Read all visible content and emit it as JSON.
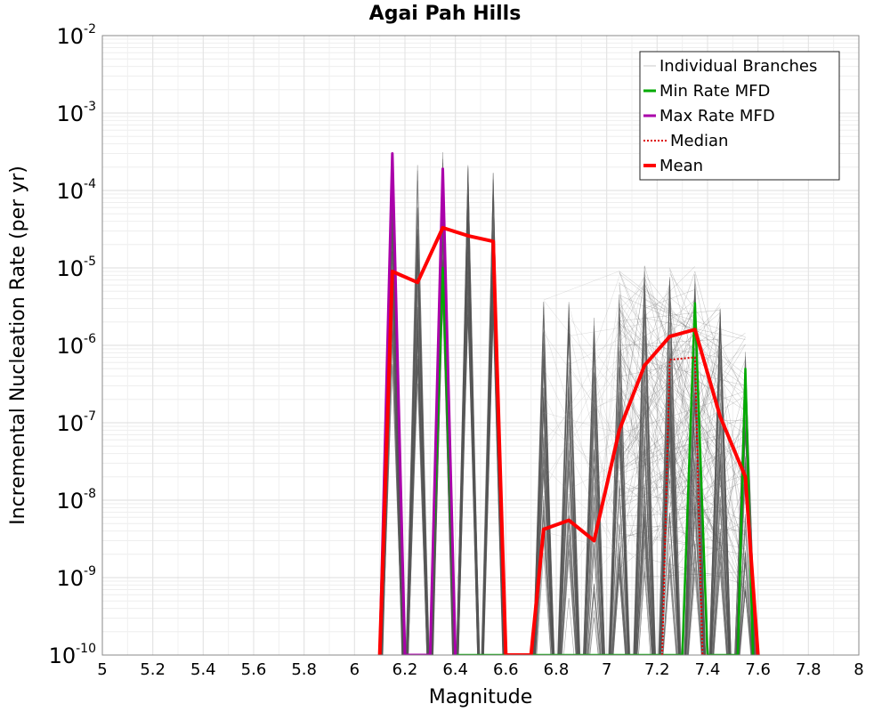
{
  "chart_data": {
    "type": "line",
    "title": "Agai Pah Hills",
    "xlabel": "Magnitude",
    "ylabel": "Incremental Nucleation Rate (per yr)",
    "xlim": [
      5,
      8
    ],
    "ylim": [
      1e-10,
      0.01
    ],
    "yscale": "log",
    "grid": true,
    "legend_position": "top-right",
    "x_ticks": [
      "5",
      "5.2",
      "5.4",
      "5.6",
      "5.8",
      "6",
      "6.2",
      "6.4",
      "6.6",
      "6.8",
      "7",
      "7.2",
      "7.4",
      "7.6",
      "7.8",
      "8"
    ],
    "y_ticks": [
      {
        "base": "10",
        "exp": "-10",
        "value": 1e-10
      },
      {
        "base": "10",
        "exp": "-9",
        "value": 1e-09
      },
      {
        "base": "10",
        "exp": "-8",
        "value": 1e-08
      },
      {
        "base": "10",
        "exp": "-7",
        "value": 1e-07
      },
      {
        "base": "10",
        "exp": "-6",
        "value": 1e-06
      },
      {
        "base": "10",
        "exp": "-5",
        "value": 1e-05
      },
      {
        "base": "10",
        "exp": "-4",
        "value": 0.0001
      },
      {
        "base": "10",
        "exp": "-3",
        "value": 0.001
      },
      {
        "base": "10",
        "exp": "-2",
        "value": 0.01
      }
    ],
    "series": [
      {
        "name": "Individual Branches",
        "color": "#555555",
        "style": "thin",
        "note_band_peaks": [
          {
            "x": 6.15,
            "min": 5e-07,
            "max": 0.00033
          },
          {
            "x": 6.25,
            "min": 3e-07,
            "max": 0.00022
          },
          {
            "x": 6.35,
            "min": 3e-06,
            "max": 0.00035
          },
          {
            "x": 6.45,
            "min": 2e-06,
            "max": 0.00022
          },
          {
            "x": 6.55,
            "min": 2e-06,
            "max": 0.0002
          },
          {
            "x": 6.75,
            "min": 2e-09,
            "max": 5e-06
          },
          {
            "x": 6.85,
            "min": 5e-10,
            "max": 4e-06
          },
          {
            "x": 6.95,
            "min": 3e-10,
            "max": 3e-06
          },
          {
            "x": 7.05,
            "min": 1e-09,
            "max": 1e-05
          },
          {
            "x": 7.15,
            "min": 1e-09,
            "max": 1.1e-05
          },
          {
            "x": 7.25,
            "min": 1e-09,
            "max": 1e-05
          },
          {
            "x": 7.35,
            "min": 1e-09,
            "max": 1.1e-05
          },
          {
            "x": 7.45,
            "min": 1e-09,
            "max": 4e-06
          },
          {
            "x": 7.55,
            "min": 5e-10,
            "max": 1.5e-06
          }
        ]
      },
      {
        "name": "Min Rate MFD",
        "color": "#00aa00",
        "x": [
          6.3,
          6.35,
          6.4,
          7.3,
          7.35,
          7.4,
          7.52,
          7.55,
          7.58
        ],
        "values": [
          1e-10,
          1e-05,
          1e-10,
          1e-10,
          3.5e-06,
          1e-10,
          1e-10,
          5e-07,
          1e-10
        ]
      },
      {
        "name": "Max Rate MFD",
        "color": "#aa00aa",
        "x": [
          6.1,
          6.15,
          6.2,
          6.3,
          6.35,
          6.4
        ],
        "values": [
          1e-10,
          0.0003,
          1e-10,
          1e-10,
          0.00019,
          1e-10
        ]
      },
      {
        "name": "Median",
        "color": "#dd0000",
        "style": "dotted",
        "x": [
          7.22,
          7.25,
          7.35,
          7.38,
          7.4
        ],
        "values": [
          1e-10,
          6.5e-07,
          7e-07,
          1e-10,
          1e-10
        ]
      },
      {
        "name": "Mean",
        "color": "#ff0000",
        "style": "thick",
        "x": [
          6.1,
          6.15,
          6.25,
          6.35,
          6.45,
          6.55,
          6.6,
          6.7,
          6.75,
          6.85,
          6.95,
          7.05,
          7.15,
          7.25,
          7.35,
          7.45,
          7.55,
          7.6
        ],
        "values": [
          1e-10,
          9e-06,
          6.5e-06,
          3.3e-05,
          2.6e-05,
          2.2e-05,
          1e-10,
          1e-10,
          4.2e-09,
          5.5e-09,
          3e-09,
          8e-08,
          5.5e-07,
          1.3e-06,
          1.6e-06,
          1.2e-07,
          2e-08,
          1e-10
        ]
      }
    ]
  }
}
